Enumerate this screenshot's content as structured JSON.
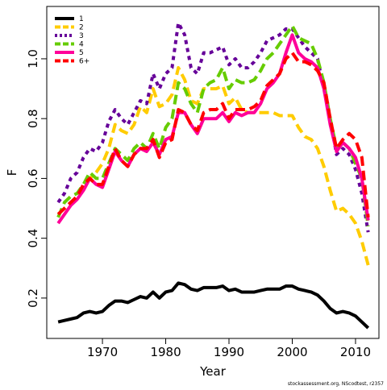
{
  "chart_data": {
    "type": "line",
    "xlabel": "Year",
    "ylabel": "F",
    "source": "stockassessment.org, NScodtest, r2357",
    "x": [
      1963,
      1964,
      1965,
      1966,
      1967,
      1968,
      1969,
      1970,
      1971,
      1972,
      1973,
      1974,
      1975,
      1976,
      1977,
      1978,
      1979,
      1980,
      1981,
      1982,
      1983,
      1984,
      1985,
      1986,
      1987,
      1988,
      1989,
      1990,
      1991,
      1992,
      1993,
      1994,
      1995,
      1996,
      1997,
      1998,
      1999,
      2000,
      2001,
      2002,
      2003,
      2004,
      2005,
      2006,
      2007,
      2008,
      2009,
      2010,
      2011,
      2012
    ],
    "xlim": [
      1961.2,
      2013.7
    ],
    "xticks": [
      1970,
      1980,
      1990,
      2000,
      2010
    ],
    "ylim": [
      0.065,
      1.175
    ],
    "yticks": [
      0.2,
      0.4,
      0.6,
      0.8,
      {
        "value": 1,
        "label": "1.0"
      }
    ],
    "legend": "top-left",
    "series": [
      {
        "name": "1",
        "color": "#000000",
        "linestyle": "solid",
        "values": [
          0.12,
          0.125,
          0.13,
          0.135,
          0.15,
          0.155,
          0.15,
          0.155,
          0.175,
          0.19,
          0.19,
          0.185,
          0.195,
          0.205,
          0.2,
          0.22,
          0.2,
          0.22,
          0.225,
          0.25,
          0.245,
          0.23,
          0.225,
          0.235,
          0.235,
          0.235,
          0.24,
          0.225,
          0.23,
          0.22,
          0.22,
          0.22,
          0.225,
          0.23,
          0.23,
          0.23,
          0.24,
          0.24,
          0.23,
          0.225,
          0.22,
          0.21,
          0.19,
          0.165,
          0.15,
          0.155,
          0.15,
          0.14,
          0.12,
          0.1
        ]
      },
      {
        "name": "2",
        "color": "#ffcc00",
        "linestyle": "dashed",
        "values": [
          0.48,
          0.5,
          0.52,
          0.53,
          0.58,
          0.6,
          0.62,
          0.65,
          0.7,
          0.78,
          0.76,
          0.75,
          0.78,
          0.84,
          0.82,
          0.9,
          0.84,
          0.85,
          0.88,
          0.97,
          0.93,
          0.86,
          0.85,
          0.9,
          0.9,
          0.9,
          0.91,
          0.85,
          0.87,
          0.83,
          0.82,
          0.82,
          0.82,
          0.82,
          0.82,
          0.81,
          0.81,
          0.81,
          0.77,
          0.74,
          0.73,
          0.7,
          0.64,
          0.56,
          0.49,
          0.5,
          0.48,
          0.45,
          0.39,
          0.31
        ]
      },
      {
        "name": "3",
        "color": "#660099",
        "linestyle": "dotted",
        "values": [
          0.52,
          0.55,
          0.6,
          0.62,
          0.67,
          0.7,
          0.69,
          0.72,
          0.79,
          0.83,
          0.8,
          0.78,
          0.82,
          0.86,
          0.85,
          0.95,
          0.9,
          0.95,
          0.97,
          1.12,
          1.08,
          0.97,
          0.95,
          1.02,
          1.02,
          1.03,
          1.04,
          0.98,
          1.0,
          0.97,
          0.97,
          0.99,
          1.02,
          1.06,
          1.07,
          1.08,
          1.1,
          1.1,
          1.07,
          1.04,
          1.02,
          1.0,
          0.9,
          0.8,
          0.68,
          0.7,
          0.68,
          0.63,
          0.55,
          0.42
        ]
      },
      {
        "name": "4",
        "color": "#66cc00",
        "linestyle": "dashed",
        "values": [
          0.47,
          0.52,
          0.54,
          0.55,
          0.58,
          0.62,
          0.6,
          0.6,
          0.65,
          0.7,
          0.68,
          0.66,
          0.7,
          0.72,
          0.7,
          0.75,
          0.7,
          0.77,
          0.8,
          0.92,
          0.9,
          0.85,
          0.82,
          0.9,
          0.92,
          0.93,
          0.97,
          0.9,
          0.93,
          0.92,
          0.92,
          0.93,
          0.96,
          1.0,
          1.02,
          1.05,
          1.08,
          1.11,
          1.07,
          1.06,
          1.05,
          1.0,
          0.92,
          0.8,
          0.7,
          0.72,
          0.7,
          0.65,
          0.6,
          0.44
        ]
      },
      {
        "name": "5",
        "color": "#ff0099",
        "linestyle": "solid",
        "values": [
          0.45,
          0.48,
          0.51,
          0.53,
          0.56,
          0.6,
          0.58,
          0.57,
          0.63,
          0.69,
          0.66,
          0.64,
          0.68,
          0.7,
          0.69,
          0.72,
          0.68,
          0.73,
          0.74,
          0.82,
          0.82,
          0.78,
          0.75,
          0.8,
          0.8,
          0.8,
          0.82,
          0.79,
          0.82,
          0.81,
          0.82,
          0.82,
          0.85,
          0.9,
          0.92,
          0.95,
          1.02,
          1.08,
          1.02,
          1.0,
          0.99,
          0.97,
          0.9,
          0.78,
          0.69,
          0.72,
          0.7,
          0.67,
          0.6,
          0.46
        ]
      },
      {
        "name": "6+",
        "color": "#ff0000",
        "linestyle": "dashed",
        "values": [
          0.48,
          0.5,
          0.52,
          0.54,
          0.58,
          0.6,
          0.58,
          0.58,
          0.64,
          0.7,
          0.66,
          0.64,
          0.68,
          0.7,
          0.7,
          0.73,
          0.67,
          0.72,
          0.73,
          0.83,
          0.82,
          0.78,
          0.76,
          0.82,
          0.83,
          0.83,
          0.85,
          0.8,
          0.83,
          0.83,
          0.83,
          0.84,
          0.86,
          0.91,
          0.93,
          0.95,
          1.0,
          1.02,
          0.99,
          0.99,
          0.98,
          0.96,
          0.92,
          0.8,
          0.7,
          0.73,
          0.75,
          0.73,
          0.67,
          0.47
        ]
      }
    ]
  }
}
